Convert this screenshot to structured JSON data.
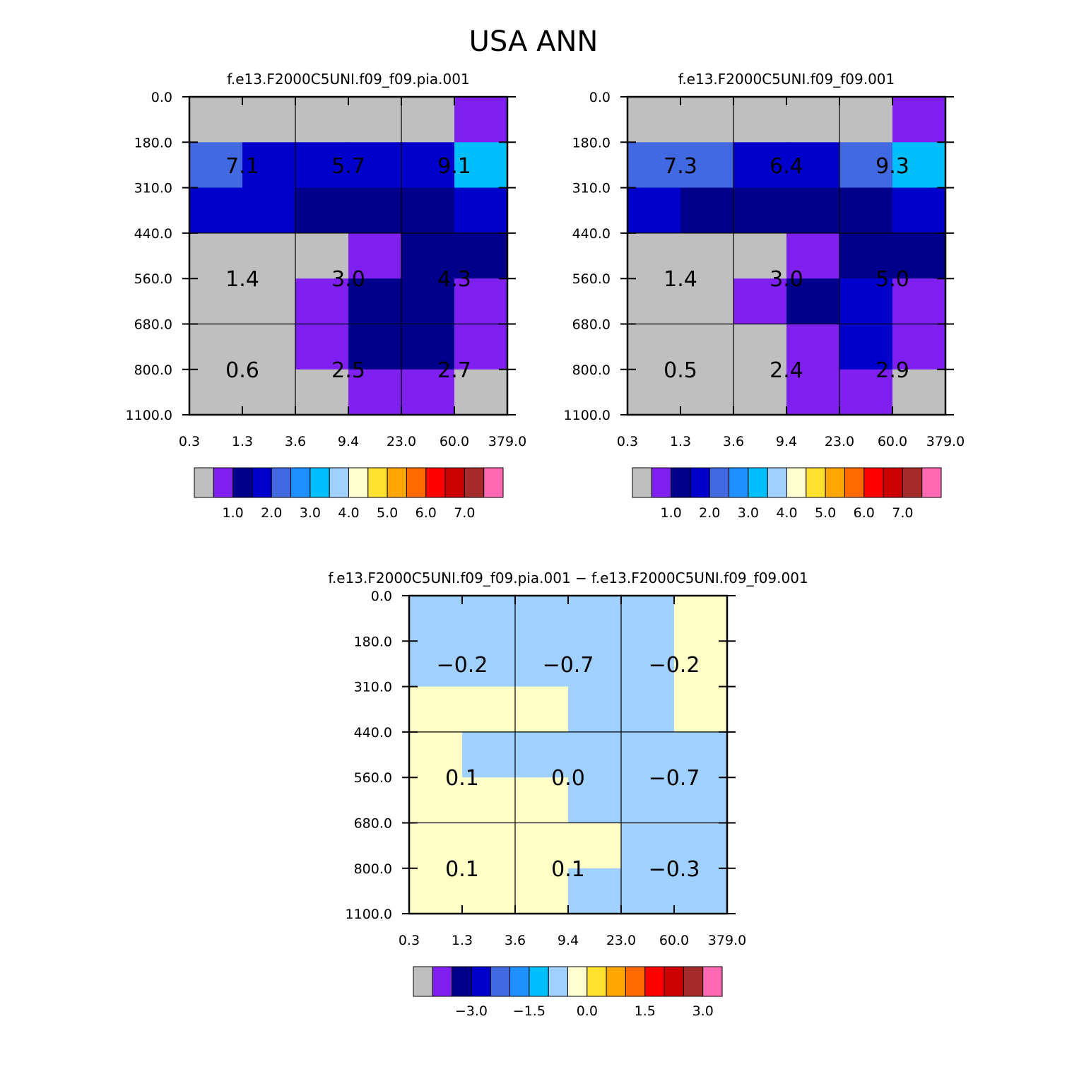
{
  "title": "USA ANN",
  "colors": {
    "cells": {
      "gray": "#bfbfbf",
      "purple": "#8020f0",
      "navy": "#00008b",
      "blue": "#0000cd",
      "royal": "#4169e1",
      "cyan": "#00bfff",
      "lightblue": "#a0d0ff",
      "lightyellow": "#ffffc8"
    },
    "colorbar": [
      "#bfbfbf",
      "#8020f0",
      "#00008b",
      "#0000cd",
      "#4169e1",
      "#1e90ff",
      "#00bfff",
      "#a0d0ff",
      "#ffffd0",
      "#ffdf30",
      "#ffa500",
      "#ff6a00",
      "#ff0000",
      "#cc0000",
      "#a52a2a",
      "#ff69b4"
    ]
  },
  "chart_data": [
    {
      "type": "heatmap",
      "title": "f.e13.F2000C5UNI.f09_f09.pia.001",
      "x_ticks": [
        "0.3",
        "1.3",
        "3.6",
        "9.4",
        "23.0",
        "60.0",
        "379.0"
      ],
      "y_ticks": [
        "0.0",
        "180.0",
        "310.0",
        "440.0",
        "560.0",
        "680.0",
        "800.0",
        "1100.0"
      ],
      "cells": [
        [
          "gray",
          "gray",
          "gray",
          "gray",
          "gray",
          "purple"
        ],
        [
          "royal",
          "blue",
          "blue",
          "blue",
          "blue",
          "cyan"
        ],
        [
          "blue",
          "blue",
          "navy",
          "navy",
          "navy",
          "blue"
        ],
        [
          "gray",
          "gray",
          "gray",
          "purple",
          "navy",
          "navy"
        ],
        [
          "gray",
          "gray",
          "purple",
          "navy",
          "navy",
          "purple"
        ],
        [
          "gray",
          "gray",
          "purple",
          "navy",
          "navy",
          "purple"
        ],
        [
          "gray",
          "gray",
          "gray",
          "purple",
          "purple",
          "gray"
        ]
      ],
      "labels": [
        "7.1",
        "5.7",
        "9.1",
        "1.4",
        "3.0",
        "4.3",
        "0.6",
        "2.5",
        "2.7"
      ],
      "colorbar_labels": [
        "1.0",
        "2.0",
        "3.0",
        "4.0",
        "5.0",
        "6.0",
        "7.0"
      ]
    },
    {
      "type": "heatmap",
      "title": "f.e13.F2000C5UNI.f09_f09.001",
      "x_ticks": [
        "0.3",
        "1.3",
        "3.6",
        "9.4",
        "23.0",
        "60.0",
        "379.0"
      ],
      "y_ticks": [
        "0.0",
        "180.0",
        "310.0",
        "440.0",
        "560.0",
        "680.0",
        "800.0",
        "1100.0"
      ],
      "cells": [
        [
          "gray",
          "gray",
          "gray",
          "gray",
          "gray",
          "purple"
        ],
        [
          "royal",
          "royal",
          "blue",
          "blue",
          "royal",
          "cyan"
        ],
        [
          "blue",
          "navy",
          "navy",
          "navy",
          "navy",
          "blue"
        ],
        [
          "gray",
          "gray",
          "gray",
          "purple",
          "navy",
          "navy"
        ],
        [
          "gray",
          "gray",
          "purple",
          "navy",
          "blue",
          "purple"
        ],
        [
          "gray",
          "gray",
          "gray",
          "purple",
          "blue",
          "purple"
        ],
        [
          "gray",
          "gray",
          "gray",
          "purple",
          "purple",
          "gray"
        ]
      ],
      "labels": [
        "7.3",
        "6.4",
        "9.3",
        "1.4",
        "3.0",
        "5.0",
        "0.5",
        "2.4",
        "2.9"
      ],
      "colorbar_labels": [
        "1.0",
        "2.0",
        "3.0",
        "4.0",
        "5.0",
        "6.0",
        "7.0"
      ]
    },
    {
      "type": "heatmap",
      "title": "f.e13.F2000C5UNI.f09_f09.pia.001 − f.e13.F2000C5UNI.f09_f09.001",
      "x_ticks": [
        "0.3",
        "1.3",
        "3.6",
        "9.4",
        "23.0",
        "60.0",
        "379.0"
      ],
      "y_ticks": [
        "0.0",
        "180.0",
        "310.0",
        "440.0",
        "560.0",
        "680.0",
        "800.0",
        "1100.0"
      ],
      "cells": [
        [
          "lightblue",
          "lightblue",
          "lightblue",
          "lightblue",
          "lightblue",
          "lightyellow"
        ],
        [
          "lightblue",
          "lightblue",
          "lightblue",
          "lightblue",
          "lightblue",
          "lightyellow"
        ],
        [
          "lightyellow",
          "lightyellow",
          "lightyellow",
          "lightblue",
          "lightblue",
          "lightyellow"
        ],
        [
          "lightyellow",
          "lightblue",
          "lightblue",
          "lightblue",
          "lightblue",
          "lightblue"
        ],
        [
          "lightyellow",
          "lightyellow",
          "lightyellow",
          "lightblue",
          "lightblue",
          "lightblue"
        ],
        [
          "lightyellow",
          "lightyellow",
          "lightyellow",
          "lightyellow",
          "lightblue",
          "lightblue"
        ],
        [
          "lightyellow",
          "lightyellow",
          "lightyellow",
          "lightblue",
          "lightblue",
          "lightblue"
        ]
      ],
      "labels": [
        "−0.2",
        "−0.7",
        "−0.2",
        "0.1",
        "0.0",
        "−0.7",
        "0.1",
        "0.1",
        "−0.3"
      ],
      "colorbar_labels": [
        "−3.0",
        "−1.5",
        "0.0",
        "1.5",
        "3.0"
      ]
    }
  ]
}
